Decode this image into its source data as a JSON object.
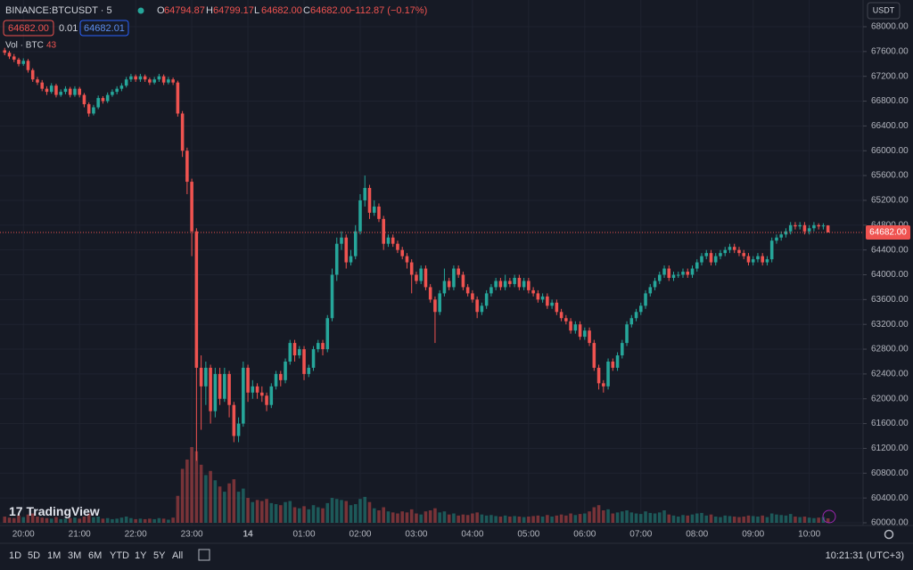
{
  "chart_data": {
    "type": "candlestick",
    "symbol": "BINANCE:BTCUSDT · 5",
    "legend": [
      {
        "key": "O",
        "value": "64794.87"
      },
      {
        "key": "H",
        "value": "64799.17"
      },
      {
        "key": "L",
        "value": "64682.00"
      },
      {
        "key": "C",
        "value": "64682.00"
      }
    ],
    "change": "−112.87 (−0.17%)",
    "bid": "64682.00",
    "spread": "0.01",
    "ask": "64682.01",
    "volume_label": "Vol · BTC",
    "volume_value": 43,
    "currency": "USDT",
    "up_color": "#26a69a",
    "down_color": "#ef5350",
    "grid": true,
    "xlim": [
      -1,
      183.5
    ],
    "xticks": [
      {
        "value": 4,
        "label": "20:00"
      },
      {
        "value": 16,
        "label": "21:00"
      },
      {
        "value": 28,
        "label": "22:00"
      },
      {
        "value": 40,
        "label": "23:00"
      },
      {
        "value": 52,
        "label": "14"
      },
      {
        "value": 64,
        "label": "01:00"
      },
      {
        "value": 76,
        "label": "02:00"
      },
      {
        "value": 88,
        "label": "03:00"
      },
      {
        "value": 100,
        "label": "04:00"
      },
      {
        "value": 112,
        "label": "05:00"
      },
      {
        "value": 124,
        "label": "06:00"
      },
      {
        "value": 136,
        "label": "07:00"
      },
      {
        "value": 148,
        "label": "08:00"
      },
      {
        "value": 160,
        "label": "09:00"
      },
      {
        "value": 172,
        "label": "10:00"
      }
    ],
    "ylim": [
      60000,
      68000
    ],
    "yticks": [
      {
        "value": 60000,
        "label": "60000.00"
      },
      {
        "value": 60400,
        "label": "60400.00"
      },
      {
        "value": 60800,
        "label": "60800.00"
      },
      {
        "value": 61200,
        "label": "61200.00"
      },
      {
        "value": 61600,
        "label": "61600.00"
      },
      {
        "value": 62000,
        "label": "62000.00"
      },
      {
        "value": 62400,
        "label": "62400.00"
      },
      {
        "value": 62800,
        "label": "62800.00"
      },
      {
        "value": 63200,
        "label": "63200.00"
      },
      {
        "value": 63600,
        "label": "63600.00"
      },
      {
        "value": 64000,
        "label": "64000.00"
      },
      {
        "value": 64400,
        "label": "64400.00"
      },
      {
        "value": 64800,
        "label": "64800.00"
      },
      {
        "value": 65200,
        "label": "65200.00"
      },
      {
        "value": 65600,
        "label": "65600.00"
      },
      {
        "value": 66000,
        "label": "66000.00"
      },
      {
        "value": 66400,
        "label": "66400.00"
      },
      {
        "value": 66800,
        "label": "66800.00"
      },
      {
        "value": 67200,
        "label": "67200.00"
      },
      {
        "value": 67600,
        "label": "67600.00"
      },
      {
        "value": 68000,
        "label": "68000.00"
      }
    ],
    "price_line": {
      "value": 64682,
      "label": "64682.00"
    },
    "ohlc": [
      [
        67620,
        67660,
        67540,
        67580
      ],
      [
        67580,
        67610,
        67480,
        67520
      ],
      [
        67520,
        67560,
        67430,
        67470
      ],
      [
        67470,
        67500,
        67360,
        67400
      ],
      [
        67400,
        67490,
        67370,
        67450
      ],
      [
        67450,
        67480,
        67260,
        67300
      ],
      [
        67300,
        67330,
        67110,
        67150
      ],
      [
        67150,
        67190,
        67060,
        67100
      ],
      [
        67100,
        67140,
        66960,
        67000
      ],
      [
        67000,
        67040,
        66900,
        66950
      ],
      [
        66950,
        67090,
        66920,
        67050
      ],
      [
        67050,
        67080,
        66860,
        66900
      ],
      [
        66900,
        66990,
        66870,
        66950
      ],
      [
        66950,
        67040,
        66910,
        67000
      ],
      [
        67000,
        67030,
        66860,
        66900
      ],
      [
        66900,
        67040,
        66870,
        67000
      ],
      [
        67000,
        67030,
        66860,
        66900
      ],
      [
        66900,
        66930,
        66700,
        66750
      ],
      [
        66750,
        66780,
        66550,
        66600
      ],
      [
        66600,
        66740,
        66570,
        66700
      ],
      [
        66700,
        66890,
        66670,
        66850
      ],
      [
        66850,
        66880,
        66760,
        66800
      ],
      [
        66800,
        66940,
        66770,
        66900
      ],
      [
        66900,
        66990,
        66870,
        66950
      ],
      [
        66950,
        67040,
        66910,
        67000
      ],
      [
        67000,
        67090,
        66960,
        67050
      ],
      [
        67050,
        67190,
        67020,
        67150
      ],
      [
        67150,
        67240,
        67110,
        67200
      ],
      [
        67200,
        67230,
        67110,
        67150
      ],
      [
        67150,
        67240,
        67110,
        67200
      ],
      [
        67200,
        67230,
        67110,
        67150
      ],
      [
        67150,
        67180,
        67060,
        67100
      ],
      [
        67100,
        67190,
        67070,
        67150
      ],
      [
        67150,
        67240,
        67110,
        67200
      ],
      [
        67200,
        67230,
        67060,
        67100
      ],
      [
        67100,
        67190,
        67070,
        67150
      ],
      [
        67150,
        67180,
        67060,
        67100
      ],
      [
        67100,
        67130,
        66550,
        66600
      ],
      [
        66600,
        66640,
        65900,
        66000
      ],
      [
        66000,
        66050,
        65300,
        65500
      ],
      [
        65500,
        65550,
        64300,
        64700
      ],
      [
        64700,
        64750,
        61000,
        62500
      ],
      [
        62500,
        62700,
        61500,
        62200
      ],
      [
        62200,
        62600,
        61900,
        62500
      ],
      [
        62500,
        62550,
        61600,
        61800
      ],
      [
        61800,
        62500,
        61700,
        62400
      ],
      [
        62400,
        62500,
        61900,
        62000
      ],
      [
        62000,
        62500,
        61950,
        62400
      ],
      [
        62400,
        62450,
        61700,
        61900
      ],
      [
        61900,
        61950,
        61300,
        61400
      ],
      [
        61400,
        61700,
        61300,
        61600
      ],
      [
        61600,
        62600,
        61550,
        62500
      ],
      [
        62500,
        62550,
        61950,
        62100
      ],
      [
        62100,
        62300,
        62000,
        62200
      ],
      [
        62200,
        62250,
        62000,
        62100
      ],
      [
        62100,
        62200,
        61950,
        62050
      ],
      [
        62050,
        62100,
        61800,
        61900
      ],
      [
        61900,
        62250,
        61850,
        62200
      ],
      [
        62200,
        62450,
        62150,
        62400
      ],
      [
        62400,
        62450,
        62200,
        62300
      ],
      [
        62300,
        62650,
        62250,
        62600
      ],
      [
        62600,
        62950,
        62550,
        62900
      ],
      [
        62900,
        62950,
        62600,
        62700
      ],
      [
        62700,
        62850,
        62650,
        62800
      ],
      [
        62800,
        62850,
        62300,
        62400
      ],
      [
        62400,
        62550,
        62350,
        62500
      ],
      [
        62500,
        62850,
        62450,
        62800
      ],
      [
        62800,
        62950,
        62750,
        62900
      ],
      [
        62900,
        62950,
        62700,
        62800
      ],
      [
        62800,
        63350,
        62750,
        63300
      ],
      [
        63300,
        64100,
        63250,
        64000
      ],
      [
        64000,
        64600,
        63900,
        64500
      ],
      [
        64500,
        64700,
        64400,
        64600
      ],
      [
        64600,
        64650,
        64100,
        64200
      ],
      [
        64200,
        64400,
        64150,
        64300
      ],
      [
        64300,
        64800,
        64250,
        64700
      ],
      [
        64700,
        65300,
        64650,
        65200
      ],
      [
        65200,
        65600,
        65100,
        65400
      ],
      [
        65400,
        65450,
        64900,
        65000
      ],
      [
        65000,
        65200,
        64950,
        65100
      ],
      [
        65100,
        65150,
        64850,
        64900
      ],
      [
        64900,
        64950,
        64400,
        64500
      ],
      [
        64500,
        64650,
        64450,
        64600
      ],
      [
        64600,
        64650,
        64450,
        64500
      ],
      [
        64500,
        64550,
        64350,
        64400
      ],
      [
        64400,
        64450,
        64250,
        64300
      ],
      [
        64300,
        64350,
        64100,
        64200
      ],
      [
        64200,
        64250,
        63700,
        64000
      ],
      [
        64000,
        64050,
        63850,
        63900
      ],
      [
        63900,
        64150,
        63850,
        64100
      ],
      [
        64100,
        64150,
        63750,
        63800
      ],
      [
        63800,
        63850,
        63550,
        63600
      ],
      [
        63600,
        63650,
        62900,
        63400
      ],
      [
        63400,
        63750,
        63350,
        63700
      ],
      [
        63700,
        64100,
        63650,
        63900
      ],
      [
        63900,
        63950,
        63750,
        63800
      ],
      [
        63800,
        64150,
        63750,
        64100
      ],
      [
        64100,
        64150,
        63950,
        64000
      ],
      [
        64000,
        64050,
        63750,
        63800
      ],
      [
        63800,
        63850,
        63650,
        63700
      ],
      [
        63700,
        63750,
        63550,
        63600
      ],
      [
        63600,
        63650,
        63300,
        63400
      ],
      [
        63400,
        63550,
        63350,
        63500
      ],
      [
        63500,
        63750,
        63450,
        63700
      ],
      [
        63700,
        63850,
        63650,
        63800
      ],
      [
        63800,
        63950,
        63750,
        63900
      ],
      [
        63900,
        63950,
        63750,
        63800
      ],
      [
        63800,
        64000,
        63750,
        63900
      ],
      [
        63900,
        63950,
        63800,
        63850
      ],
      [
        63850,
        64000,
        63800,
        63950
      ],
      [
        63950,
        64000,
        63750,
        63800
      ],
      [
        63800,
        63950,
        63750,
        63900
      ],
      [
        63900,
        63950,
        63700,
        63750
      ],
      [
        63750,
        63800,
        63650,
        63700
      ],
      [
        63700,
        63750,
        63550,
        63600
      ],
      [
        63600,
        63700,
        63550,
        63650
      ],
      [
        63650,
        63700,
        63450,
        63500
      ],
      [
        63500,
        63600,
        63450,
        63550
      ],
      [
        63550,
        63600,
        63350,
        63400
      ],
      [
        63400,
        63450,
        63250,
        63300
      ],
      [
        63300,
        63350,
        63200,
        63250
      ],
      [
        63250,
        63300,
        63050,
        63100
      ],
      [
        63100,
        63250,
        63050,
        63200
      ],
      [
        63200,
        63250,
        62950,
        63000
      ],
      [
        63000,
        63150,
        62950,
        63100
      ],
      [
        63100,
        63150,
        62850,
        62900
      ],
      [
        62900,
        62950,
        62450,
        62500
      ],
      [
        62500,
        62550,
        62150,
        62250
      ],
      [
        62250,
        62300,
        62100,
        62200
      ],
      [
        62200,
        62650,
        62150,
        62600
      ],
      [
        62600,
        62650,
        62450,
        62500
      ],
      [
        62500,
        62750,
        62450,
        62700
      ],
      [
        62700,
        62950,
        62650,
        62900
      ],
      [
        62900,
        63250,
        62850,
        63200
      ],
      [
        63200,
        63350,
        63150,
        63300
      ],
      [
        63300,
        63450,
        63250,
        63400
      ],
      [
        63400,
        63550,
        63350,
        63500
      ],
      [
        63500,
        63750,
        63450,
        63700
      ],
      [
        63700,
        63850,
        63650,
        63800
      ],
      [
        63800,
        63950,
        63750,
        63900
      ],
      [
        63900,
        64050,
        63850,
        64000
      ],
      [
        64000,
        64150,
        63950,
        64100
      ],
      [
        64100,
        64150,
        63900,
        63950
      ],
      [
        63950,
        64050,
        63900,
        64000
      ],
      [
        64000,
        64050,
        63950,
        64000
      ],
      [
        64000,
        64100,
        63950,
        64050
      ],
      [
        64050,
        64100,
        63950,
        64000
      ],
      [
        64000,
        64150,
        63950,
        64100
      ],
      [
        64100,
        64250,
        64050,
        64200
      ],
      [
        64200,
        64350,
        64150,
        64300
      ],
      [
        64300,
        64400,
        64250,
        64350
      ],
      [
        64350,
        64400,
        64150,
        64200
      ],
      [
        64200,
        64350,
        64150,
        64300
      ],
      [
        64300,
        64400,
        64250,
        64350
      ],
      [
        64350,
        64450,
        64300,
        64400
      ],
      [
        64400,
        64500,
        64350,
        64450
      ],
      [
        64450,
        64500,
        64350,
        64400
      ],
      [
        64400,
        64450,
        64300,
        64350
      ],
      [
        64350,
        64400,
        64250,
        64300
      ],
      [
        64300,
        64350,
        64150,
        64200
      ],
      [
        64200,
        64300,
        64150,
        64250
      ],
      [
        64250,
        64350,
        64200,
        64300
      ],
      [
        64300,
        64350,
        64150,
        64200
      ],
      [
        64200,
        64300,
        64150,
        64250
      ],
      [
        64250,
        64600,
        64200,
        64550
      ],
      [
        64550,
        64650,
        64500,
        64600
      ],
      [
        64600,
        64700,
        64550,
        64650
      ],
      [
        64650,
        64750,
        64600,
        64700
      ],
      [
        64700,
        64850,
        64650,
        64800
      ],
      [
        64800,
        64850,
        64730,
        64780
      ],
      [
        64780,
        64850,
        64730,
        64800
      ],
      [
        64800,
        64850,
        64650,
        64700
      ],
      [
        64700,
        64800,
        64650,
        64750
      ],
      [
        64750,
        64850,
        64700,
        64800
      ],
      [
        64800,
        64830,
        64730,
        64780
      ],
      [
        64780,
        64830,
        64730,
        64794.87
      ],
      [
        64794.87,
        64799.17,
        64682,
        64682
      ]
    ],
    "volume": [
      60,
      50,
      45,
      70,
      55,
      80,
      90,
      60,
      50,
      45,
      40,
      55,
      35,
      40,
      45,
      50,
      40,
      60,
      90,
      55,
      60,
      40,
      45,
      35,
      40,
      50,
      60,
      45,
      35,
      40,
      35,
      40,
      35,
      45,
      40,
      30,
      50,
      260,
      520,
      610,
      730,
      690,
      560,
      460,
      500,
      410,
      350,
      300,
      380,
      420,
      300,
      330,
      240,
      200,
      220,
      210,
      230,
      190,
      180,
      170,
      200,
      210,
      150,
      140,
      160,
      130,
      170,
      150,
      140,
      190,
      240,
      230,
      220,
      210,
      170,
      180,
      230,
      250,
      200,
      140,
      120,
      150,
      110,
      100,
      90,
      110,
      100,
      130,
      90,
      80,
      110,
      120,
      140,
      100,
      110,
      80,
      90,
      70,
      80,
      75,
      90,
      100,
      80,
      70,
      75,
      65,
      60,
      70,
      60,
      65,
      60,
      55,
      60,
      65,
      70,
      60,
      75,
      60,
      70,
      80,
      70,
      90,
      75,
      85,
      90,
      110,
      150,
      170,
      120,
      130,
      90,
      100,
      110,
      120,
      100,
      90,
      85,
      110,
      95,
      90,
      100,
      120,
      80,
      70,
      60,
      75,
      70,
      80,
      90,
      95,
      70,
      80,
      60,
      55,
      70,
      65,
      60,
      55,
      60,
      70,
      65,
      60,
      70,
      55,
      90,
      80,
      75,
      70,
      85,
      60,
      55,
      60,
      50,
      45,
      50,
      55,
      43
    ]
  },
  "logo": "TradingView",
  "toolbar": {
    "ranges": [
      "1D",
      "5D",
      "1M",
      "3M",
      "6M",
      "YTD",
      "1Y",
      "5Y",
      "All"
    ],
    "clock": "10:21:31 (UTC+3)"
  }
}
